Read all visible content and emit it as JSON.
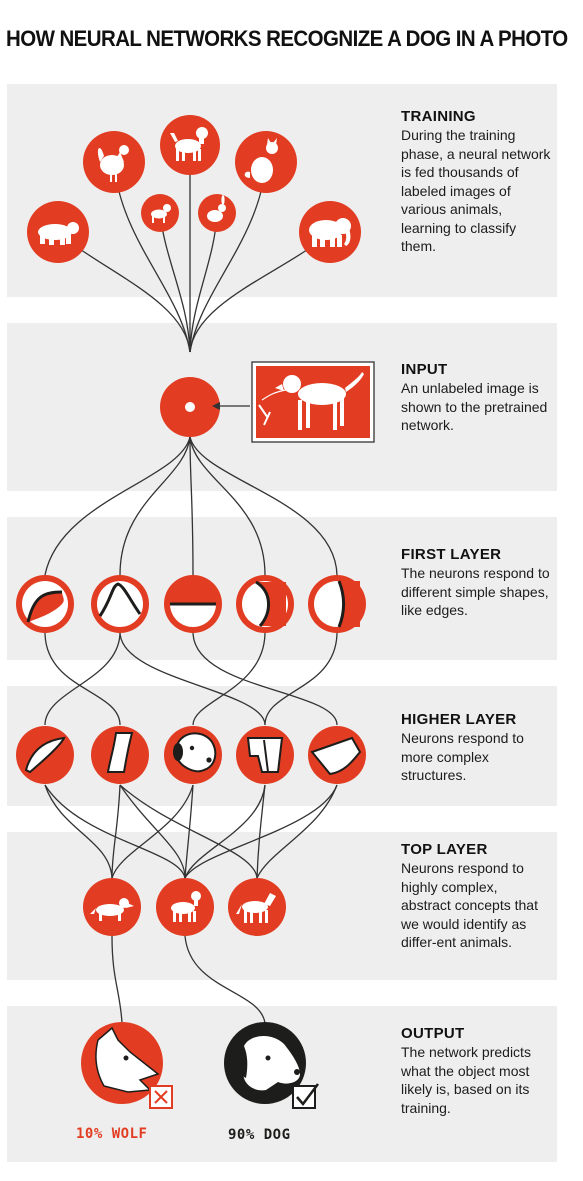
{
  "title": "HOW NEURAL NETWORKS RECOGNIZE A DOG IN A PHOTO",
  "colors": {
    "accent": "#e23d22",
    "panel": "#eeeeef",
    "dark": "#1d1d1b",
    "line": "#333333"
  },
  "sections": {
    "training": {
      "heading": "TRAINING",
      "body": "During the training phase, a neural network is fed thousands of labeled images of various animals, learning to classify them."
    },
    "input": {
      "heading": "INPUT",
      "body": "An unlabeled image is shown to the pretrained network."
    },
    "first_layer": {
      "heading": "FIRST LAYER",
      "body": "The neurons respond to different simple shapes, like edges."
    },
    "higher_layer": {
      "heading": "HIGHER LAYER",
      "body": "Neurons respond to more complex structures."
    },
    "top_layer": {
      "heading": "TOP LAYER",
      "body": "Neurons respond to highly complex, abstract concepts that we would identify as differ-ent animals."
    },
    "output": {
      "heading": "OUTPUT",
      "body": "The network predicts what the object most likely is, based on its training."
    }
  },
  "training_icons": [
    "bear-icon",
    "rooster-icon",
    "small-dog-icon",
    "dog-icon",
    "rabbit-icon",
    "cat-icon",
    "elephant-icon"
  ],
  "top_layer_icons": [
    "wolf-icon",
    "dog-icon",
    "horse-icon"
  ],
  "outputs": [
    {
      "label": "10% WOLF",
      "icon": "wolf-head-icon",
      "mark": "x-box-icon",
      "color": "#e23d22"
    },
    {
      "label": "90% DOG",
      "icon": "dog-head-icon",
      "mark": "check-box-icon",
      "color": "#1d1d1b"
    }
  ]
}
